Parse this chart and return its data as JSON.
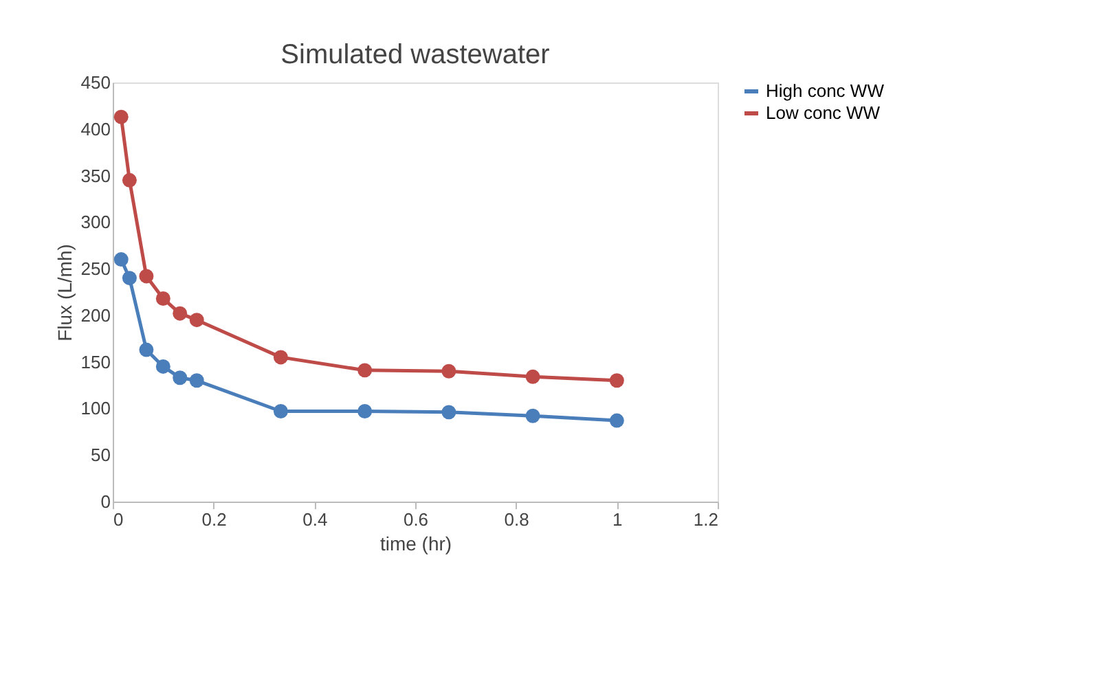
{
  "chart_data": {
    "type": "line",
    "title": "Simulated wastewater",
    "xlabel": "time (hr)",
    "ylabel": "Flux (L/mh)",
    "x": [
      0.0167,
      0.0333,
      0.0667,
      0.1,
      0.1333,
      0.1667,
      0.3333,
      0.5,
      0.6667,
      0.8333,
      1.0
    ],
    "series": [
      {
        "name": "High conc WW",
        "color": "#4a7ebb",
        "values": [
          260,
          240,
          163,
          145,
          133,
          130,
          97,
          97,
          96,
          92,
          87
        ]
      },
      {
        "name": "Low conc WW",
        "color": "#be4b48",
        "values": [
          413,
          345,
          242,
          218,
          202,
          195,
          155,
          141,
          140,
          134,
          130
        ]
      }
    ],
    "xlim": [
      0,
      1.2
    ],
    "xticks": [
      0,
      0.2,
      0.4,
      0.6,
      0.8,
      1,
      1.2
    ],
    "ylim": [
      0,
      450
    ],
    "yticks": [
      0,
      50,
      100,
      150,
      200,
      250,
      300,
      350,
      400,
      450
    ],
    "grid": false,
    "legend": "right",
    "marker": "circle",
    "line_style": "solid"
  }
}
